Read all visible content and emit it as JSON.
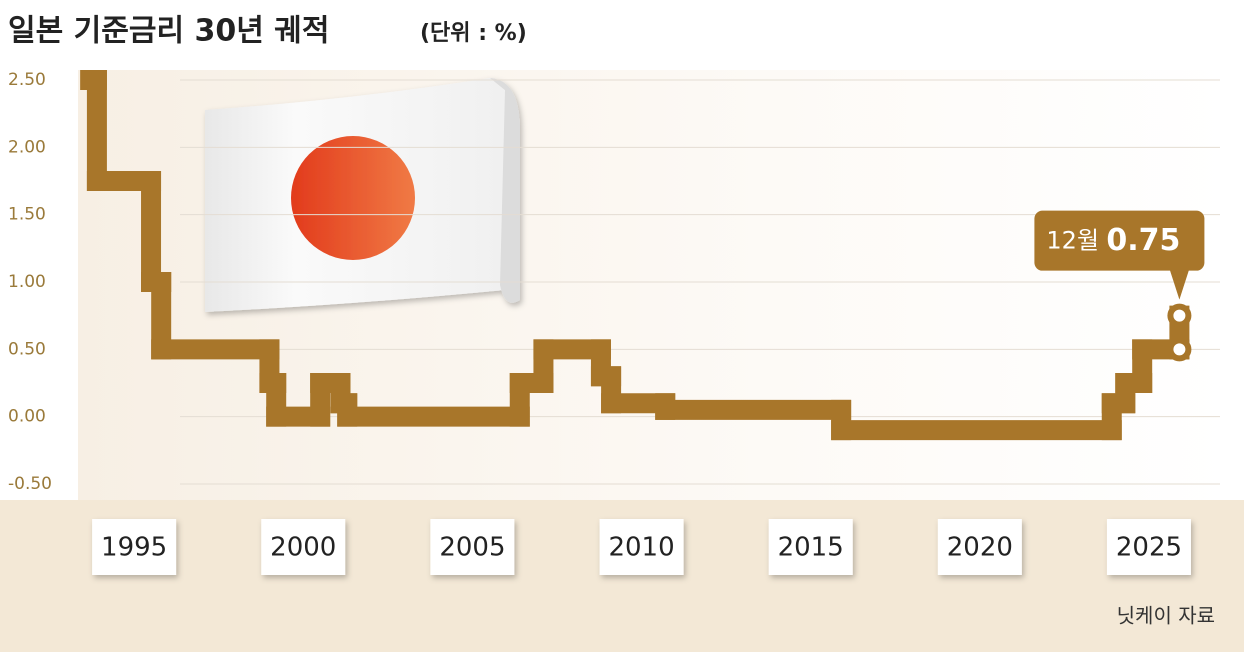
{
  "chart_data": {
    "type": "line",
    "step": true,
    "title": "일본 기준금리 30년 궤적",
    "unit": "(단위 : %)",
    "source": "닛케이 자료",
    "annotation": "12월",
    "color": "#a8762a",
    "x": [
      1993.7,
      1993.9,
      1995.5,
      1995.8,
      1999.0,
      1999.2,
      2000.5,
      2001.1,
      2001.3,
      2006.4,
      2007.1,
      2008.8,
      2009.1,
      2010.7,
      2015.9,
      2023.9,
      2024.3,
      2024.8,
      2025.9
    ],
    "values": [
      2.5,
      1.75,
      1.0,
      0.5,
      0.25,
      0,
      0.25,
      0.1,
      0,
      0.25,
      0.5,
      0.3,
      0.1,
      0.05,
      -0.1,
      0.1,
      0.25,
      0.5,
      0.75
    ],
    "xlim": [
      1993.4,
      2027.1
    ],
    "xticks": [
      1995,
      2000,
      2005,
      2010,
      2015,
      2020,
      2025
    ],
    "ylim": [
      -0.5,
      2.5
    ],
    "yticks": [
      {
        "value": -0.5,
        "label": "-0.50"
      },
      {
        "value": 0,
        "label": "0.00"
      },
      {
        "value": 0.5,
        "label": "0.50"
      },
      {
        "value": 1,
        "label": "1.00"
      },
      {
        "value": 1.5,
        "label": "1.50"
      },
      {
        "value": 2,
        "label": "2.00"
      },
      {
        "value": 2.5,
        "label": "2.50"
      }
    ],
    "grid": true
  }
}
